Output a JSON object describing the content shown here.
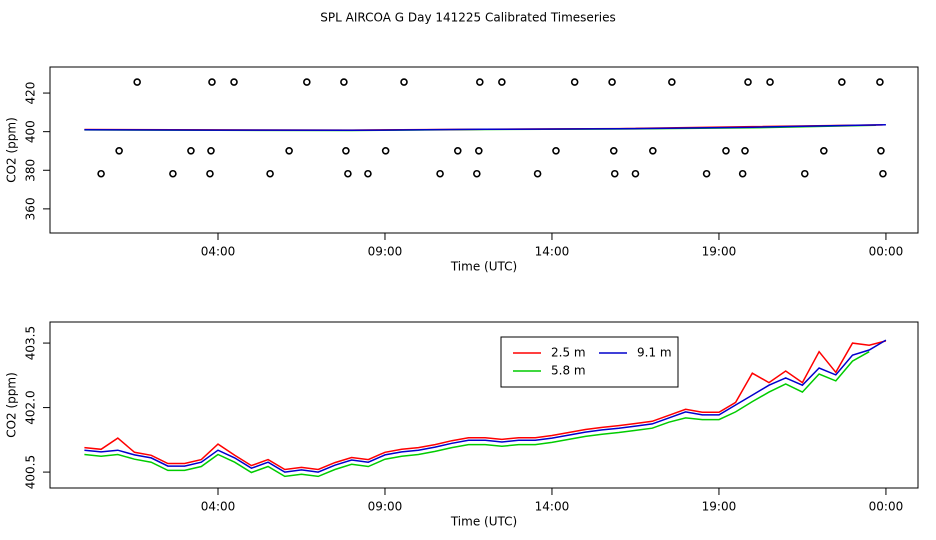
{
  "title": "SPL AIRCOA G  Day 141225  Calibrated Timeseries",
  "chart_data": [
    {
      "type": "line",
      "xlabel": "Time (UTC)",
      "ylabel": "CO2 (ppm)",
      "xlim": [
        -1.03,
        24.96
      ],
      "ylim": [
        347.5,
        433.5
      ],
      "xticks": [
        {
          "value": 4,
          "label": "04:00"
        },
        {
          "value": 9,
          "label": "09:00"
        },
        {
          "value": 14,
          "label": "14:00"
        },
        {
          "value": 19,
          "label": "19:00"
        },
        {
          "value": 24,
          "label": "00:00"
        }
      ],
      "yticks": [
        360,
        380,
        400,
        420
      ],
      "series": [
        {
          "type": "scatter",
          "color": "#000000",
          "x": [
            1.58,
            3.82,
            4.48,
            6.66,
            7.77,
            9.57,
            11.84,
            12.5,
            14.68,
            15.8,
            17.59,
            19.87,
            20.53,
            22.68,
            23.82
          ],
          "values": [
            425.7,
            425.7,
            425.7,
            425.7,
            425.7,
            425.7,
            425.7,
            425.7,
            425.7,
            425.7,
            425.7,
            425.7,
            425.7,
            425.7,
            425.7
          ]
        },
        {
          "type": "scatter",
          "color": "#000000",
          "x": [
            1.04,
            3.19,
            3.79,
            6.13,
            7.83,
            9.02,
            11.18,
            11.81,
            14.12,
            15.85,
            17.02,
            19.21,
            19.78,
            22.14,
            23.85
          ],
          "values": [
            390.1,
            390.1,
            390.1,
            390.1,
            390.1,
            390.1,
            390.1,
            390.1,
            390.1,
            390.1,
            390.1,
            390.1,
            390.1,
            390.1,
            390.1
          ]
        },
        {
          "type": "scatter",
          "color": "#000000",
          "x": [
            0.5,
            2.65,
            3.76,
            5.56,
            7.89,
            8.49,
            10.65,
            11.75,
            13.57,
            15.88,
            16.5,
            18.63,
            19.71,
            21.57,
            23.91
          ],
          "values": [
            378.2,
            378.2,
            378.2,
            378.2,
            378.2,
            378.2,
            378.2,
            378.2,
            378.2,
            378.2,
            378.2,
            378.2,
            378.2,
            378.2,
            378.2
          ]
        },
        {
          "type": "line",
          "color": "#00cc00",
          "x": [
            0,
            4,
            8,
            12,
            16,
            20,
            23.7
          ],
          "values": [
            400.9,
            400.7,
            400.6,
            401.1,
            401.4,
            402.0,
            403.3
          ]
        },
        {
          "type": "line",
          "color": "#ff0000",
          "x": [
            0,
            4,
            8,
            12,
            16,
            20,
            23.9
          ],
          "values": [
            401.1,
            400.9,
            400.8,
            401.3,
            401.6,
            402.6,
            403.5
          ]
        },
        {
          "type": "line",
          "color": "#0000cc",
          "x": [
            0,
            4,
            8,
            12,
            16,
            20,
            24
          ],
          "values": [
            401.0,
            400.8,
            400.7,
            401.2,
            401.5,
            402.3,
            403.6
          ]
        }
      ]
    },
    {
      "type": "line",
      "xlabel": "Time (UTC)",
      "ylabel": "CO2 (ppm)",
      "xlim": [
        -1.03,
        24.96
      ],
      "ylim": [
        400.13,
        403.99
      ],
      "xticks": [
        {
          "value": 4,
          "label": "04:00"
        },
        {
          "value": 9,
          "label": "09:00"
        },
        {
          "value": 14,
          "label": "14:00"
        },
        {
          "value": 19,
          "label": "19:00"
        },
        {
          "value": 24,
          "label": "00:00"
        }
      ],
      "yticks": [
        400.5,
        {
          "value": 402,
          "label": "402.0"
        },
        403.5
      ],
      "x": [
        0,
        0.5,
        1,
        1.5,
        2,
        2.5,
        3,
        3.5,
        4,
        4.5,
        5,
        5.5,
        6,
        6.5,
        7,
        7.5,
        8,
        8.5,
        9,
        9.5,
        10,
        10.5,
        11,
        11.5,
        12,
        12.5,
        13,
        13.5,
        14,
        14.5,
        15,
        15.5,
        16,
        16.5,
        17,
        17.5,
        18,
        18.5,
        19,
        19.5,
        20,
        20.5,
        21,
        21.5,
        22,
        22.5,
        23,
        23.5,
        24
      ],
      "series": [
        {
          "name": "2.5 m",
          "color": "#ff0000",
          "values": [
            401.07,
            401.03,
            401.29,
            400.96,
            400.89,
            400.7,
            400.7,
            400.79,
            401.15,
            400.89,
            400.65,
            400.79,
            400.56,
            400.61,
            400.56,
            400.72,
            400.84,
            400.79,
            400.96,
            401.03,
            401.07,
            401.14,
            401.23,
            401.3,
            401.3,
            401.26,
            401.3,
            401.3,
            401.35,
            401.42,
            401.49,
            401.54,
            401.58,
            401.63,
            401.68,
            401.82,
            401.96,
            401.89,
            401.89,
            402.12,
            402.8,
            402.58,
            402.85,
            402.58,
            403.3,
            402.82,
            403.5,
            403.45,
            403.55
          ]
        },
        {
          "name": "5.8 m",
          "color": "#00cc00",
          "values": [
            400.91,
            400.87,
            400.91,
            400.8,
            400.73,
            400.54,
            400.54,
            400.63,
            400.91,
            400.73,
            400.49,
            400.63,
            400.4,
            400.45,
            400.4,
            400.56,
            400.68,
            400.63,
            400.8,
            400.87,
            400.91,
            400.98,
            401.07,
            401.14,
            401.14,
            401.1,
            401.14,
            401.14,
            401.19,
            401.26,
            401.33,
            401.38,
            401.42,
            401.47,
            401.52,
            401.66,
            401.76,
            401.72,
            401.72,
            401.9,
            402.14,
            402.36,
            402.55,
            402.36,
            402.78,
            402.62,
            403.08,
            403.3,
            null
          ]
        },
        {
          "name": "9.1 m",
          "color": "#0000cc",
          "values": [
            401.01,
            400.97,
            401.01,
            400.9,
            400.83,
            400.64,
            400.64,
            400.73,
            401.01,
            400.83,
            400.59,
            400.73,
            400.5,
            400.55,
            400.5,
            400.66,
            400.78,
            400.73,
            400.9,
            400.97,
            401.01,
            401.08,
            401.17,
            401.24,
            401.24,
            401.2,
            401.24,
            401.24,
            401.29,
            401.36,
            401.43,
            401.48,
            401.52,
            401.57,
            401.62,
            401.76,
            401.9,
            401.83,
            401.83,
            402.06,
            402.29,
            402.52,
            402.69,
            402.52,
            402.92,
            402.76,
            403.22,
            403.34,
            403.57
          ]
        }
      ]
    }
  ]
}
